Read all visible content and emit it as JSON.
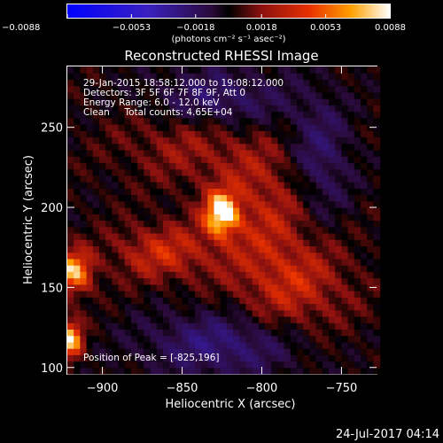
{
  "chart_data": {
    "type": "heatmap",
    "title": "Reconstructed RHESSI Image",
    "xlabel": "Heliocentric X (arcsec)",
    "ylabel": "Heliocentric Y (arcsec)",
    "xlim": [
      -922,
      -728
    ],
    "ylim": [
      96,
      288
    ],
    "x_ticks": [
      -900,
      -850,
      -800,
      -750
    ],
    "y_ticks": [
      100,
      150,
      200,
      250
    ],
    "x_tick_labels": [
      "−900",
      "−850",
      "−800",
      "−750"
    ],
    "y_tick_labels": [
      "100",
      "150",
      "200",
      "250"
    ],
    "colorbar": {
      "min": -0.0088,
      "max": 0.0088,
      "ticks": [
        -0.0088,
        -0.0053,
        -0.0018,
        0.0018,
        0.0053,
        0.0088
      ],
      "tick_labels": [
        "−0.0088",
        "−0.0053",
        "−0.0018",
        "0.0018",
        "0.0053",
        "0.0088"
      ],
      "units_label": "(photons cm⁻² s⁻¹ asec⁻²)"
    },
    "annotations": [
      "29-Jan-2015 18:58:12.000 to 19:08:12.000",
      "Detectors: 3F 5F 6F 7F 8F 9F, Att 0",
      "Energy Range: 6.0 - 12.0 keV",
      "Clean     Total counts: 4.65E+04"
    ],
    "peak_label": "Position of Peak = [-825,196]",
    "peak": [
      -825,
      196
    ],
    "sources": [
      {
        "x": -825,
        "y": 196,
        "sx": 7,
        "sy": 9,
        "amp": 1.0
      },
      {
        "x": -918,
        "y": 160,
        "sx": 8,
        "sy": 9,
        "amp": 0.75
      },
      {
        "x": -920,
        "y": 118,
        "sx": 5,
        "sy": 8,
        "amp": 0.8
      },
      {
        "x": -862,
        "y": 172,
        "sx": 22,
        "sy": 12,
        "amp": 0.35
      },
      {
        "x": -795,
        "y": 200,
        "sx": 25,
        "sy": 30,
        "amp": 0.3
      },
      {
        "x": -780,
        "y": 150,
        "sx": 25,
        "sy": 20,
        "amp": 0.3
      },
      {
        "x": -845,
        "y": 245,
        "sx": 30,
        "sy": 18,
        "amp": 0.25
      }
    ],
    "negative_regions": [
      {
        "x": -830,
        "y": 265,
        "sx": 30,
        "sy": 15,
        "amp": -0.35
      },
      {
        "x": -765,
        "y": 225,
        "sx": 15,
        "sy": 30,
        "amp": -0.3
      },
      {
        "x": -825,
        "y": 115,
        "sx": 35,
        "sy": 15,
        "amp": -0.3
      }
    ]
  },
  "footer": {
    "timestamp": "24-Jul-2017 04:14"
  }
}
